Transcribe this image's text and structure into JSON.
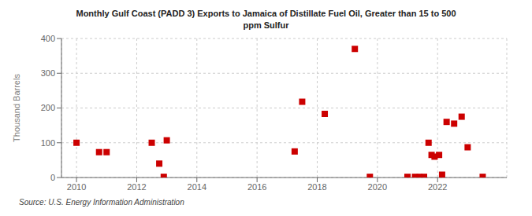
{
  "chart_data": {
    "type": "scatter",
    "title": "Monthly Gulf Coast (PADD 3) Exports to Jamaica of Distillate Fuel Oil, Greater than 15 to 500\nppm Sulfur",
    "ylabel": "Thousand Barrels",
    "source": "Source: U.S. Energy Information Administration",
    "x": [
      2010.0,
      2010.75,
      2011.0,
      2012.5,
      2012.75,
      2012.9,
      2013.0,
      2017.25,
      2017.5,
      2018.25,
      2019.25,
      2019.75,
      2021.0,
      2021.25,
      2021.4,
      2021.55,
      2021.7,
      2021.8,
      2021.9,
      2022.05,
      2022.15,
      2022.3,
      2022.55,
      2022.8,
      2023.0,
      2023.5
    ],
    "values": [
      100,
      73,
      73,
      100,
      40,
      2,
      107,
      75,
      218,
      183,
      370,
      2,
      2,
      2,
      2,
      2,
      100,
      65,
      60,
      65,
      8,
      160,
      155,
      175,
      87,
      2
    ],
    "color": "#cc0000",
    "marker": "square",
    "xlim": [
      2009.5,
      2024.3
    ],
    "ylim": [
      0,
      400
    ],
    "xticks": [
      2010,
      2012,
      2014,
      2016,
      2018,
      2020,
      2022
    ],
    "yticks": [
      0,
      100,
      200,
      300,
      400
    ],
    "grid": true
  }
}
